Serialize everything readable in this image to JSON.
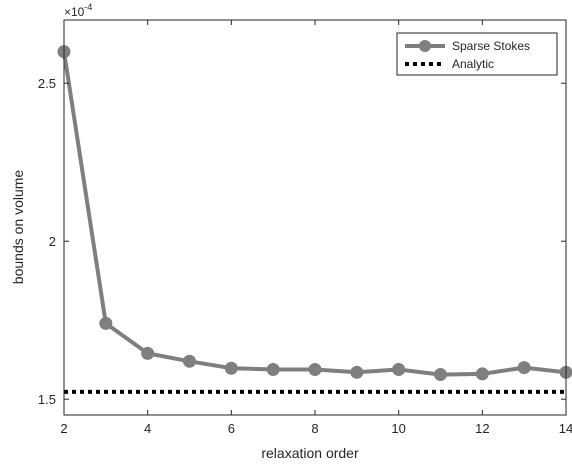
{
  "chart_data": {
    "type": "line",
    "title": "",
    "xlabel": "relaxation order",
    "ylabel": "bounds on volume",
    "y_exponent_label": "×10",
    "y_exponent_power": "-4",
    "xlim": [
      2,
      14
    ],
    "ylim": [
      1.45,
      2.7
    ],
    "x_ticks": [
      2,
      4,
      6,
      8,
      10,
      12,
      14
    ],
    "x_tick_labels": [
      "2",
      "4",
      "6",
      "8",
      "10",
      "12",
      "14"
    ],
    "y_ticks": [
      1.5,
      2,
      2.5
    ],
    "y_tick_labels": [
      "1.5",
      "2",
      "2.5"
    ],
    "grid": false,
    "legend_position": "top-right",
    "series": [
      {
        "name": "Sparse Stokes",
        "style": "solid-with-markers",
        "color": "#7f7f7f",
        "x": [
          2,
          3,
          4,
          5,
          6,
          7,
          8,
          9,
          10,
          11,
          12,
          13,
          14
        ],
        "values": [
          2.6,
          1.74,
          1.645,
          1.62,
          1.598,
          1.594,
          1.594,
          1.585,
          1.594,
          1.578,
          1.58,
          1.6,
          1.585
        ]
      },
      {
        "name": "Analytic",
        "style": "dotted",
        "color": "#000000",
        "x": [
          2,
          14
        ],
        "values": [
          1.523,
          1.523
        ]
      }
    ]
  }
}
